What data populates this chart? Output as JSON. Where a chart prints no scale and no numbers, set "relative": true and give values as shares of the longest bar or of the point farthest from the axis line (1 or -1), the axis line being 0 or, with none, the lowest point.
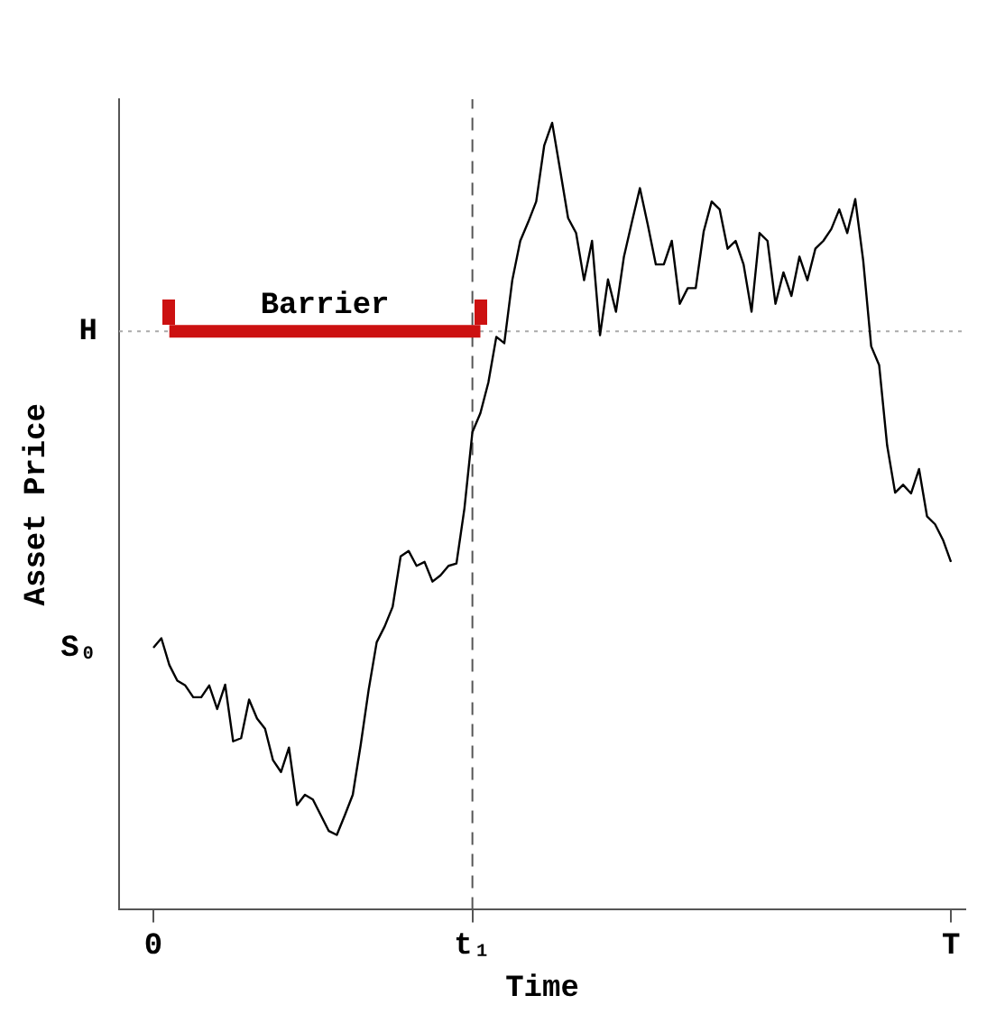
{
  "chart_data": {
    "type": "line",
    "relative": true,
    "xlabel": "Time",
    "ylabel": "Asset Price",
    "categories": [
      "0",
      null,
      null,
      null,
      null,
      null,
      null,
      null,
      null,
      null,
      null,
      null,
      null,
      null,
      null,
      null,
      null,
      null,
      null,
      null,
      null,
      null,
      null,
      null,
      null,
      null,
      null,
      null,
      null,
      null,
      null,
      null,
      null,
      null,
      null,
      null,
      null,
      null,
      null,
      null,
      "t₁",
      null,
      null,
      null,
      null,
      null,
      null,
      null,
      null,
      null,
      null,
      null,
      null,
      null,
      null,
      null,
      null,
      null,
      null,
      null,
      null,
      null,
      null,
      null,
      null,
      null,
      null,
      null,
      null,
      null,
      null,
      null,
      null,
      null,
      null,
      null,
      null,
      null,
      null,
      null,
      null,
      null,
      null,
      null,
      null,
      null,
      null,
      null,
      null,
      null,
      null,
      null,
      null,
      null,
      null,
      null,
      null,
      null,
      null,
      null,
      "T"
    ],
    "series": [
      {
        "color": "#000000",
        "values": [
          0.333,
          0.345,
          0.311,
          0.291,
          0.285,
          0.27,
          0.27,
          0.285,
          0.255,
          0.286,
          0.214,
          0.218,
          0.267,
          0.243,
          0.23,
          0.19,
          0.175,
          0.206,
          0.133,
          0.146,
          0.14,
          0.12,
          0.1,
          0.095,
          0.12,
          0.146,
          0.21,
          0.28,
          0.34,
          0.36,
          0.385,
          0.449,
          0.456,
          0.437,
          0.442,
          0.417,
          0.425,
          0.437,
          0.44,
          0.51,
          0.607,
          0.631,
          0.67,
          0.728,
          0.72,
          0.8,
          0.85,
          0.874,
          0.9,
          0.971,
          1,
          0.94,
          0.879,
          0.86,
          0.8,
          0.85,
          0.73,
          0.801,
          0.76,
          0.83,
          0.874,
          0.917,
          0.87,
          0.82,
          0.82,
          0.85,
          0.77,
          0.79,
          0.79,
          0.862,
          0.9,
          0.89,
          0.84,
          0.85,
          0.82,
          0.76,
          0.86,
          0.85,
          0.77,
          0.81,
          0.78,
          0.83,
          0.8,
          0.84,
          0.85,
          0.865,
          0.89,
          0.86,
          0.903,
          0.825,
          0.716,
          0.692,
          0.59,
          0.53,
          0.54,
          0.529,
          0.56,
          0.5,
          0.49,
          0.47,
          0.442
        ]
      },
      {
        "name": "Barrier",
        "color": "#cc1111",
        "values": [
          null,
          null,
          0.735,
          0.735,
          0.735,
          0.735,
          0.735,
          0.735,
          0.735,
          0.735,
          0.735,
          0.735,
          0.735,
          0.735,
          0.735,
          0.735,
          0.735,
          0.735,
          0.735,
          0.735,
          0.735,
          0.735,
          0.735,
          0.735,
          0.735,
          0.735,
          0.735,
          0.735,
          0.735,
          0.735,
          0.735,
          0.735,
          0.735,
          0.735,
          0.735,
          0.735,
          0.735,
          0.735,
          0.735,
          0.735,
          0.735,
          0.735,
          null,
          null,
          null,
          null,
          null,
          null,
          null,
          null,
          null,
          null,
          null,
          null,
          null,
          null,
          null,
          null,
          null,
          null,
          null,
          null,
          null,
          null,
          null,
          null,
          null,
          null,
          null,
          null,
          null,
          null,
          null,
          null,
          null,
          null,
          null,
          null,
          null,
          null,
          null,
          null,
          null,
          null,
          null,
          null,
          null,
          null,
          null,
          null,
          null,
          null,
          null,
          null,
          null,
          null,
          null,
          null,
          null,
          null,
          null
        ]
      }
    ],
    "ref_lines": [
      {
        "axis": "y",
        "value": 0.735,
        "label": "H",
        "color": "#aaaaaa",
        "line_style": "dotted"
      },
      {
        "axis": "x",
        "value": "t₁",
        "color": "#555555",
        "line_style": "dashed"
      }
    ],
    "annotations": [
      {
        "text": "S₀",
        "x": "0",
        "y": 0.333
      }
    ],
    "grid": false,
    "legend": false,
    "marker": "none",
    "line_style": "solid"
  }
}
